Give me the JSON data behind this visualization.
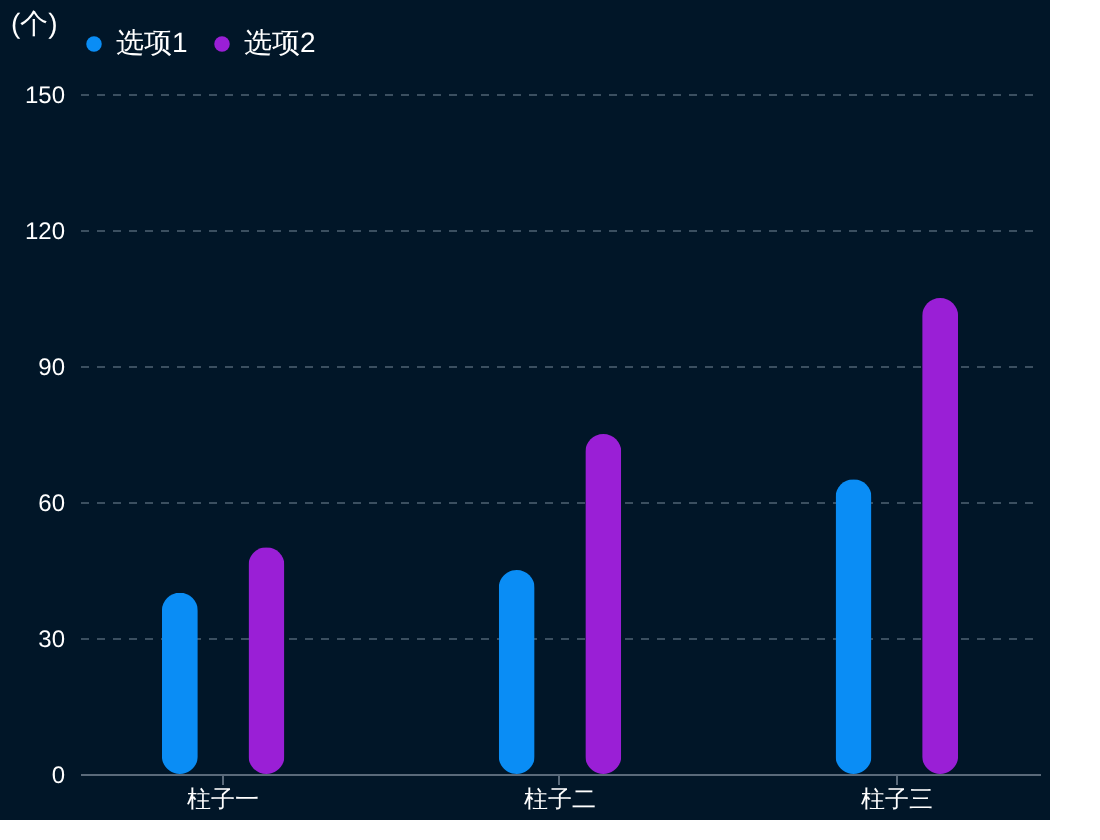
{
  "chart_data": {
    "type": "bar",
    "ylabel": "(个)",
    "categories": [
      "柱子一",
      "柱子二",
      "柱子三"
    ],
    "series": [
      {
        "name": "选项1",
        "color": "#0a8df5",
        "values": [
          40,
          45,
          65
        ]
      },
      {
        "name": "选项2",
        "color": "#9a1fd6",
        "values": [
          50,
          75,
          105
        ]
      }
    ],
    "ylim": [
      0,
      150
    ],
    "yticks": [
      0,
      30,
      60,
      90,
      120,
      150
    ],
    "grid": "y",
    "legend": "top"
  }
}
